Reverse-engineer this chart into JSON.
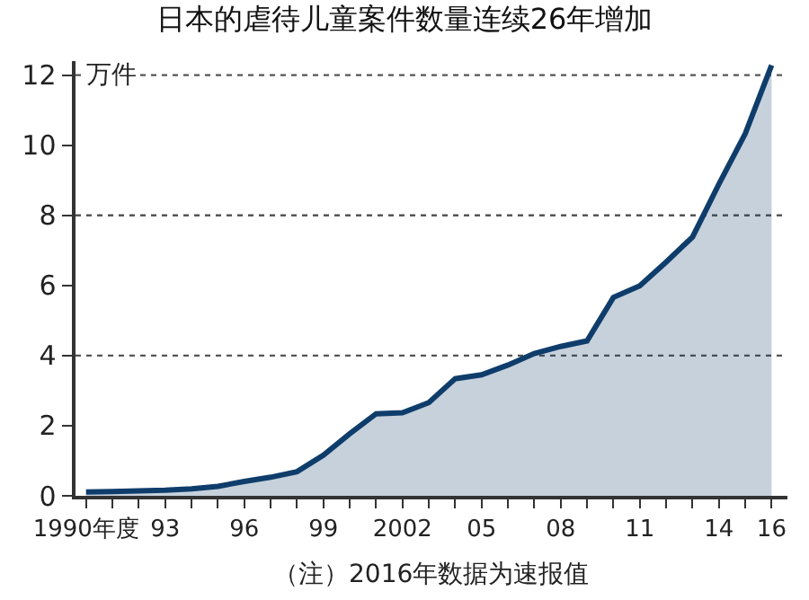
{
  "chart_data": {
    "type": "area",
    "title": "日本的虐待儿童案件数量连续26年增加",
    "ylabel": "万件",
    "x": [
      1990,
      1991,
      1992,
      1993,
      1994,
      1995,
      1996,
      1997,
      1998,
      1999,
      2000,
      2001,
      2002,
      2003,
      2004,
      2005,
      2006,
      2007,
      2008,
      2009,
      2010,
      2011,
      2012,
      2013,
      2014,
      2015,
      2016
    ],
    "series": [
      {
        "color": "#0f3d6b",
        "values": [
          0.11,
          0.12,
          0.14,
          0.16,
          0.2,
          0.27,
          0.41,
          0.53,
          0.69,
          1.16,
          1.77,
          2.34,
          2.37,
          2.66,
          3.34,
          3.45,
          3.73,
          4.06,
          4.26,
          4.42,
          5.66,
          5.99,
          6.67,
          7.38,
          8.89,
          10.33,
          12.28
        ]
      }
    ],
    "xlim": [
      1989.6,
      2016.6
    ],
    "ylim": [
      0,
      12.4
    ],
    "xticks": [
      {
        "value": 1990,
        "label": "1990年度"
      },
      {
        "value": 1991,
        "label": null
      },
      {
        "value": 1992,
        "label": null
      },
      {
        "value": 1993,
        "label": "93"
      },
      {
        "value": 1994,
        "label": null
      },
      {
        "value": 1995,
        "label": null
      },
      {
        "value": 1996,
        "label": "96"
      },
      {
        "value": 1997,
        "label": null
      },
      {
        "value": 1998,
        "label": null
      },
      {
        "value": 1999,
        "label": "99"
      },
      {
        "value": 2000,
        "label": null
      },
      {
        "value": 2001,
        "label": null
      },
      {
        "value": 2002,
        "label": "2002"
      },
      {
        "value": 2003,
        "label": null
      },
      {
        "value": 2004,
        "label": null
      },
      {
        "value": 2005,
        "label": "05"
      },
      {
        "value": 2006,
        "label": null
      },
      {
        "value": 2007,
        "label": null
      },
      {
        "value": 2008,
        "label": "08"
      },
      {
        "value": 2009,
        "label": null
      },
      {
        "value": 2010,
        "label": null
      },
      {
        "value": 2011,
        "label": "11"
      },
      {
        "value": 2012,
        "label": null
      },
      {
        "value": 2013,
        "label": null
      },
      {
        "value": 2014,
        "label": "14"
      },
      {
        "value": 2015,
        "label": null
      },
      {
        "value": 2016,
        "label": "16"
      }
    ],
    "yticks": [
      0,
      2,
      4,
      6,
      8,
      10,
      12
    ],
    "ref_lines": [
      {
        "axis": "y",
        "value": 4,
        "color": "#555555",
        "line_style": "dotted"
      },
      {
        "axis": "y",
        "value": 8,
        "color": "#555555",
        "line_style": "dotted"
      },
      {
        "axis": "y",
        "value": 12,
        "color": "#555555",
        "line_style": "dotted"
      }
    ],
    "annotations": [
      "（注）2016年数据为速报值"
    ],
    "legend": false
  }
}
